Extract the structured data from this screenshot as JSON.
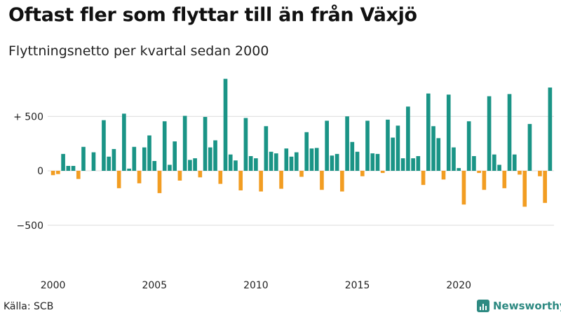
{
  "header": {
    "title": "Oftast fler som flyttar till än från Växjö",
    "subtitle": "Flyttningsnetto per kvartal sedan 2000"
  },
  "footer": {
    "source": "Källa: SCB",
    "brand": "Newsworthy"
  },
  "colors": {
    "positive": "#1a9486",
    "negative": "#f29d22",
    "grid": "#dcdcdc",
    "brand": "#2e8a82"
  },
  "chart_data": {
    "type": "bar",
    "title": "Oftast fler som flyttar till än från Växjö",
    "subtitle": "Flyttningsnetto per kvartal sedan 2000",
    "xlabel": "",
    "ylabel": "",
    "ylim": [
      -900,
      900
    ],
    "yticks": [
      500,
      0,
      -500
    ],
    "ytick_labels": [
      "+ 500",
      "0",
      "−500"
    ],
    "x_start": 2000,
    "xticks": [
      2000,
      2005,
      2010,
      2015,
      2020
    ],
    "xtick_labels": [
      "2000",
      "2005",
      "2010",
      "2015",
      "2020"
    ],
    "grid": true,
    "legend": "none",
    "series": [
      {
        "name": "Flyttningsnetto",
        "values": [
          -40,
          -30,
          155,
          45,
          45,
          -75,
          220,
          0,
          170,
          0,
          465,
          130,
          200,
          -160,
          525,
          20,
          220,
          -115,
          215,
          325,
          90,
          -205,
          455,
          55,
          270,
          -90,
          505,
          100,
          115,
          -60,
          495,
          215,
          280,
          -120,
          845,
          150,
          95,
          -180,
          485,
          135,
          115,
          -190,
          410,
          175,
          160,
          -165,
          205,
          130,
          170,
          -55,
          355,
          205,
          210,
          -175,
          460,
          140,
          155,
          -190,
          500,
          265,
          175,
          -50,
          460,
          160,
          155,
          -20,
          470,
          305,
          415,
          115,
          590,
          115,
          135,
          -130,
          710,
          410,
          300,
          -80,
          700,
          215,
          25,
          -310,
          455,
          135,
          -20,
          -175,
          685,
          150,
          55,
          -160,
          705,
          150,
          -35,
          -330,
          430,
          0,
          -50,
          -295,
          765
        ]
      }
    ]
  }
}
